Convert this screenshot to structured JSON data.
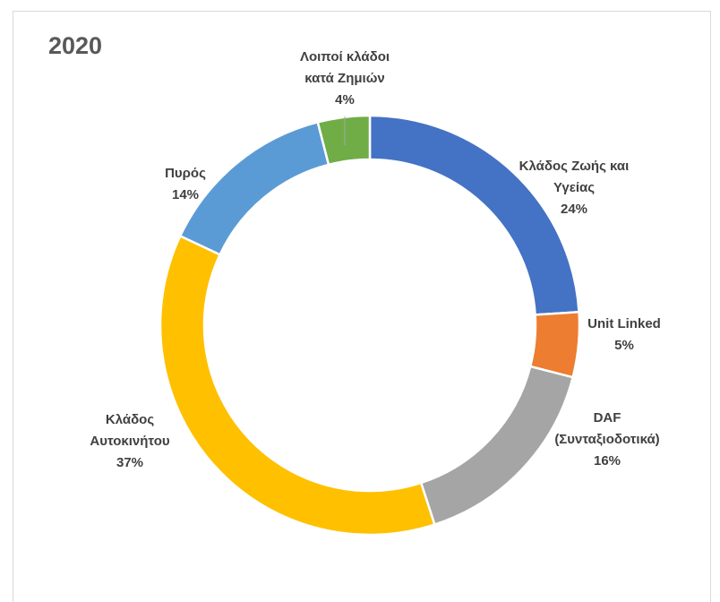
{
  "chart_data": {
    "type": "pie",
    "style": "doughnut",
    "title": "2020",
    "slices": [
      {
        "label_lines": [
          "Κλάδος Ζωής και",
          "Υγείας"
        ],
        "value": 24,
        "value_label": "24%",
        "color": "#4472C4"
      },
      {
        "label_lines": [
          "Unit Linked"
        ],
        "value": 5,
        "value_label": "5%",
        "color": "#ED7D31"
      },
      {
        "label_lines": [
          "DAF",
          "(Συνταξιοδοτικά)"
        ],
        "value": 16,
        "value_label": "16%",
        "color": "#A5A5A5"
      },
      {
        "label_lines": [
          "Κλάδος",
          "Αυτοκινήτου"
        ],
        "value": 37,
        "value_label": "37%",
        "color": "#FFC000"
      },
      {
        "label_lines": [
          "Πυρός"
        ],
        "value": 14,
        "value_label": "14%",
        "color": "#5B9BD5"
      },
      {
        "label_lines": [
          "Λοιποί κλάδοι",
          "κατά  Ζημιών"
        ],
        "value": 4,
        "value_label": "4%",
        "color": "#70AD47"
      }
    ],
    "legend": "none"
  }
}
